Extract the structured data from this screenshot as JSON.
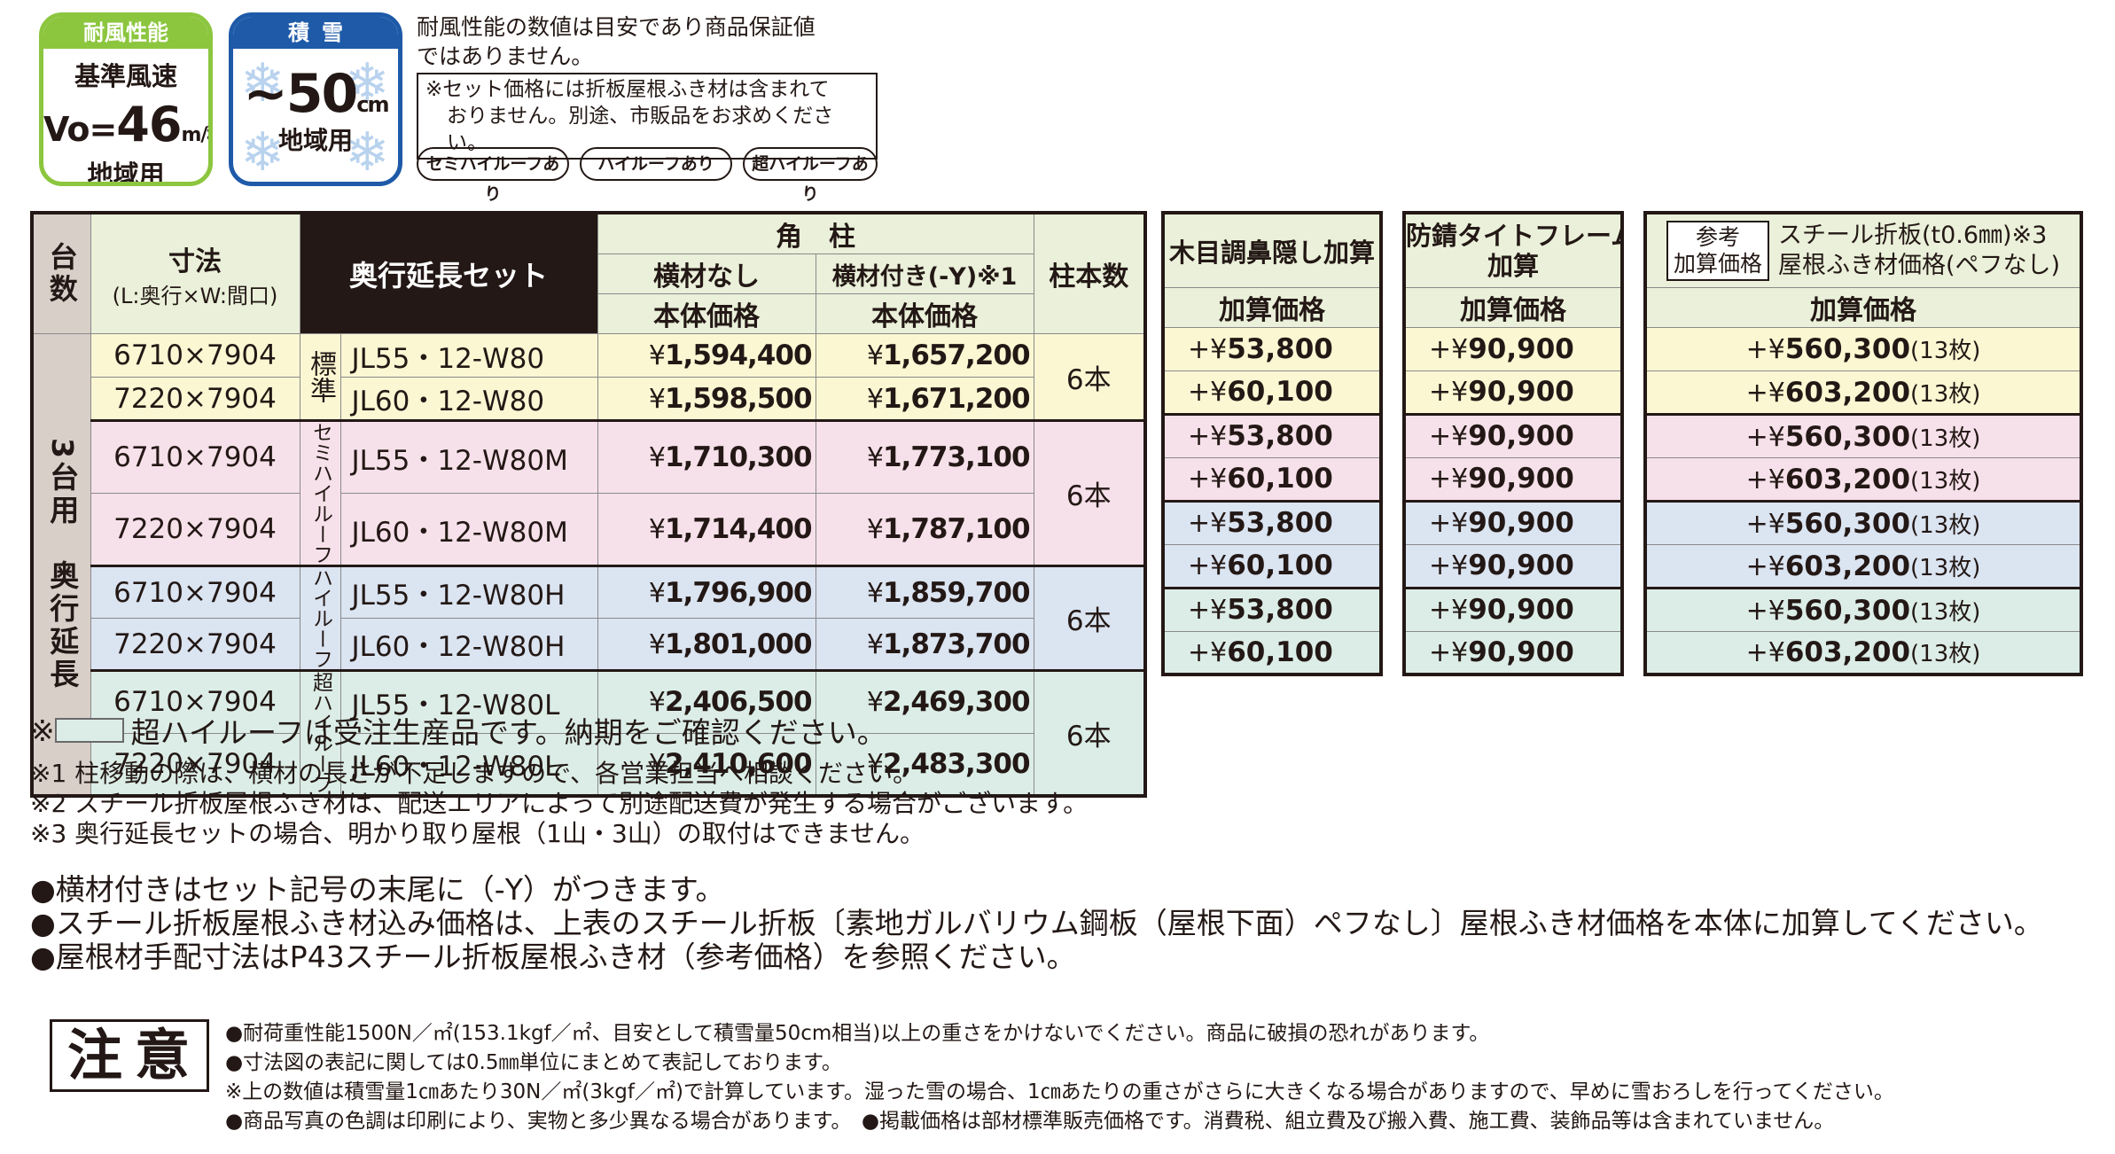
{
  "badges": {
    "wind": {
      "header": "耐風性能",
      "line1": "基準風速",
      "prefix": "Vo=",
      "value": "46",
      "unit": "m/秒",
      "line3": "地域用"
    },
    "snow": {
      "header": "積雪",
      "value": "~50",
      "unit": "cm",
      "line2": "地域用"
    }
  },
  "top_notes": {
    "line1": "耐風性能の数値は目安であり商品保証値",
    "line2": "ではありません。",
    "box_line1": "※セット価格には折板屋根ふき材は含まれて",
    "box_line2": "おりません。別途、市販品をお求めください。"
  },
  "pills": [
    "セミハイルーフあり",
    "ハイルーフあり",
    "超ハイルーフあり"
  ],
  "main_table": {
    "header": {
      "units": "台数",
      "size": "寸法",
      "size_sub": "(L:奥行×W:間口)",
      "set": "奥行延長セット",
      "kakubashira": "角　柱",
      "no_yokozai": "横材なし",
      "with_yokozai": "横材付き(-Y)※1",
      "body_price": "本体価格",
      "pillars": "柱本数"
    },
    "side_label": "3台用　奥行延長",
    "groups": [
      {
        "label": "標準",
        "class": "c-std",
        "pillars": "6本",
        "rows": [
          {
            "size": "6710×7904",
            "code": "JL55・12-W80",
            "yen": "¥",
            "price": "1,594,400",
            "price_y": "1,657,200"
          },
          {
            "size": "7220×7904",
            "code": "JL60・12-W80",
            "yen": "¥",
            "price": "1,598,500",
            "price_y": "1,671,200"
          }
        ]
      },
      {
        "label": "セミハイルーフ",
        "class": "c-semi",
        "pillars": "6本",
        "rows": [
          {
            "size": "6710×7904",
            "code": "JL55・12-W80M",
            "yen": "¥",
            "price": "1,710,300",
            "price_y": "1,773,100"
          },
          {
            "size": "7220×7904",
            "code": "JL60・12-W80M",
            "yen": "¥",
            "price": "1,714,400",
            "price_y": "1,787,100"
          }
        ]
      },
      {
        "label": "ハイルーフ",
        "class": "c-high",
        "pillars": "6本",
        "rows": [
          {
            "size": "6710×7904",
            "code": "JL55・12-W80H",
            "yen": "¥",
            "price": "1,796,900",
            "price_y": "1,859,700"
          },
          {
            "size": "7220×7904",
            "code": "JL60・12-W80H",
            "yen": "¥",
            "price": "1,801,000",
            "price_y": "1,873,700"
          }
        ]
      },
      {
        "label": "超ハイルーフ",
        "class": "c-super",
        "pillars": "6本",
        "rows": [
          {
            "size": "6710×7904",
            "code": "JL55・12-W80L",
            "yen": "¥",
            "price": "2,406,500",
            "price_y": "2,469,300"
          },
          {
            "size": "7220×7904",
            "code": "JL60・12-W80L",
            "yen": "¥",
            "price": "2,410,600",
            "price_y": "2,483,300"
          }
        ]
      }
    ]
  },
  "wood_table": {
    "title": "木目調鼻隠し加算",
    "sub": "加算価格",
    "prefix": "+¥",
    "values": [
      "53,800",
      "60,100",
      "53,800",
      "60,100",
      "53,800",
      "60,100",
      "53,800",
      "60,100"
    ]
  },
  "rust_table": {
    "title1": "防錆タイトフレーム",
    "title2": "加算",
    "sub": "加算価格",
    "prefix": "+¥",
    "values": [
      "90,900",
      "90,900",
      "90,900",
      "90,900",
      "90,900",
      "90,900",
      "90,900",
      "90,900"
    ]
  },
  "steel_table": {
    "ref1": "参考",
    "ref2": "加算価格",
    "title1": "スチール折板(t0.6㎜)※3",
    "title2": "屋根ふき材価格(ペフなし)",
    "sub": "加算価格",
    "prefix": "+¥",
    "values": [
      "560,300",
      "603,200",
      "560,300",
      "603,200",
      "560,300",
      "603,200",
      "560,300",
      "603,200"
    ],
    "count": "(13枚)"
  },
  "row_classes": [
    "c-std",
    "c-std",
    "c-semi",
    "c-semi",
    "c-high",
    "c-high",
    "c-super",
    "c-super"
  ],
  "notes": {
    "super_mark": "※",
    "super_note": "超ハイルーフは受注生産品です。納期をご確認ください。",
    "footnotes": [
      "※1 柱移動の際は、横材の長さが不足しますので、各営業担当へ相談ください。",
      "※2 スチール折板屋根ふき材は、配送エリアによって別途配送費が発生する場合がございます。",
      "※3 奥行延長セットの場合、明かり取り屋根（1山・3山）の取付はできません。"
    ],
    "bullets": [
      "●横材付きはセット記号の末尾に（-Y）がつきます。",
      "●スチール折板屋根ふき材込み価格は、上表のスチール折板〔素地ガルバリウム鋼板（屋根下面）ペフなし〕屋根ふき材価格を本体に加算してください。",
      "●屋根材手配寸法はP43スチール折板屋根ふき材（参考価格）を参照ください。"
    ]
  },
  "caution": {
    "label": "注意",
    "lines": [
      "●耐荷重性能1500N／㎡(153.1kgf／㎡、目安として積雪量50cm相当)以上の重さをかけないでください。商品に破損の恐れがあります。",
      "●寸法図の表記に関しては0.5㎜単位にまとめて表記しております。",
      "※上の数値は積雪量1㎝あたり30N／㎡(3kgf／㎡)で計算しています。湿った雪の場合、1㎝あたりの重さがさらに大きくなる場合がありますので、早めに雪おろしを行ってください。",
      "●商品写真の色調は印刷により、実物と多少異なる場合があります。　●掲載価格は部材標準販売価格です。消費税、組立費及び搬入費、施工費、装飾品等は含まれていません。"
    ]
  },
  "colors": {
    "wind": "#8cc63f",
    "snow": "#1e5aa8",
    "std": "#fbf7d3",
    "semi": "#f6e1ea",
    "high": "#dbe4f1",
    "super": "#dcede7"
  }
}
